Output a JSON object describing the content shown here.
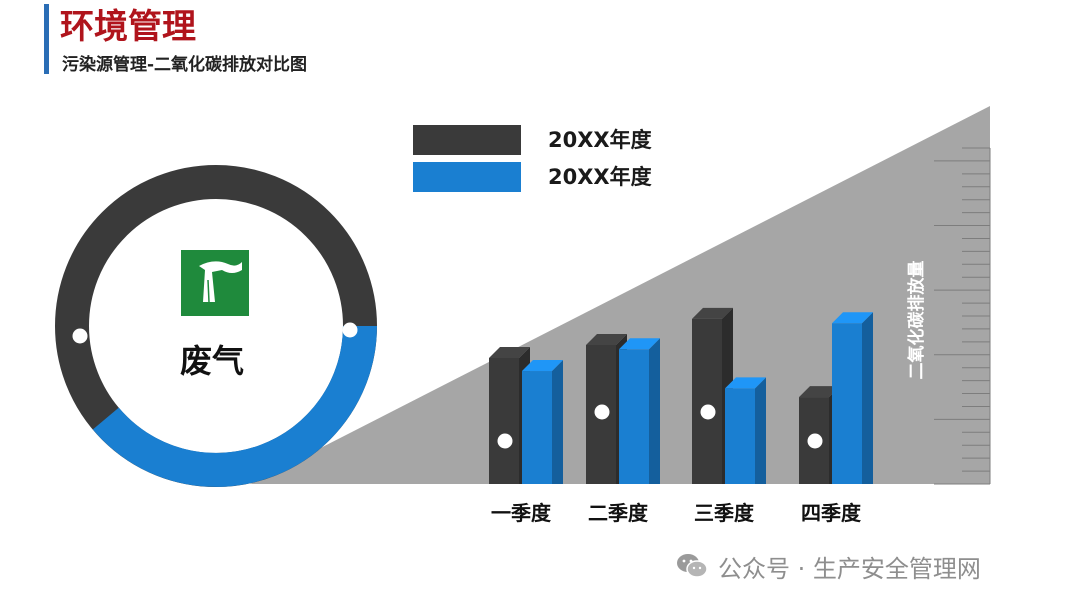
{
  "header": {
    "title": "环境管理",
    "subtitle": "污染源管理-二氧化碳排放对比图"
  },
  "donut": {
    "label": "废气",
    "icon": "factory-smokestack-icon",
    "colors": {
      "ring_dark": "#3a3a3a",
      "ring_blue": "#1a7fd1",
      "icon_bg": "#1f8a3c"
    }
  },
  "watermark": {
    "text": "公众号 · 生产安全管理网",
    "icon": "wechat-icon"
  },
  "colors": {
    "series_dark": "#3a3a3a",
    "series_blue": "#1a7fd1",
    "triangle": "#a6a6a6",
    "title_red": "#b0141c",
    "accent_blue": "#2a6db5"
  },
  "chart_data": {
    "type": "bar",
    "categories": [
      "一季度",
      "二季度",
      "三季度",
      "四季度"
    ],
    "series": [
      {
        "name": "20XX年度",
        "values": [
          29,
          32,
          38,
          20
        ],
        "color": "#3a3a3a"
      },
      {
        "name": "20XX年度",
        "values": [
          26,
          31,
          22,
          37
        ],
        "color": "#1a7fd1"
      }
    ],
    "ylabel": "二氧化碳排放量",
    "ylim": [
      0,
      87
    ],
    "ticks": 26,
    "legend_position": "top"
  }
}
